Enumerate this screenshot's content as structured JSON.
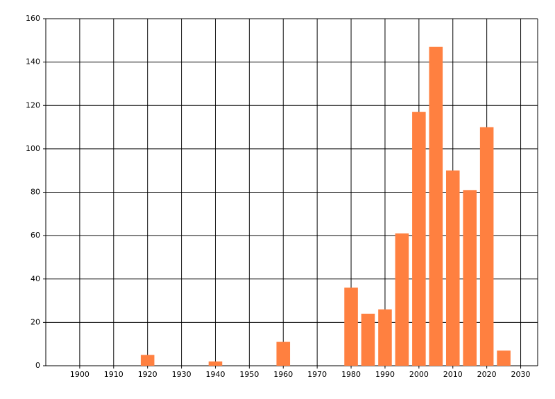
{
  "chart_data": {
    "type": "bar",
    "x": [
      1920,
      1940,
      1960,
      1980,
      1985,
      1990,
      1995,
      2000,
      2005,
      2010,
      2015,
      2020,
      2025
    ],
    "values": [
      5,
      2,
      11,
      36,
      24,
      26,
      61,
      117,
      147,
      90,
      81,
      110,
      7
    ],
    "color": "#ff8040",
    "xlim": [
      1890,
      2035
    ],
    "xticks": [
      1900,
      1910,
      1920,
      1930,
      1940,
      1950,
      1960,
      1970,
      1980,
      1990,
      2000,
      2010,
      2020,
      2030
    ],
    "ylim": [
      0,
      160
    ],
    "yticks": [
      0,
      20,
      40,
      60,
      80,
      100,
      120,
      140,
      160
    ],
    "grid": true
  }
}
